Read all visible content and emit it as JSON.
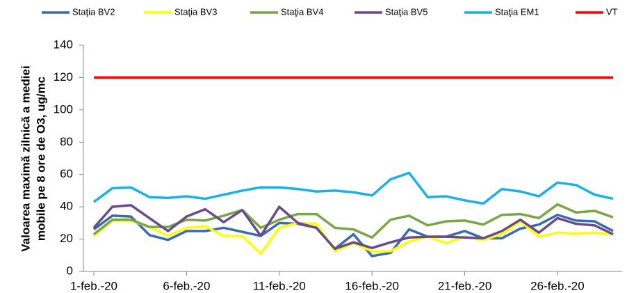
{
  "chart_data": {
    "type": "line",
    "ylabel": [
      "Valoarea maximă zilnică a mediei",
      "mobile pe 8 ore de O3, ug/mc"
    ],
    "categories": [
      "1-feb.-20",
      null,
      null,
      null,
      null,
      "6-feb.-20",
      null,
      null,
      null,
      null,
      "11-feb.-20",
      null,
      null,
      null,
      null,
      "16-feb.-20",
      null,
      null,
      null,
      null,
      "21-feb.-20",
      null,
      null,
      null,
      null,
      "26-feb.-20",
      null,
      null,
      null
    ],
    "ylim": [
      0,
      140
    ],
    "yticks": [
      0,
      20,
      40,
      60,
      80,
      100,
      120,
      140
    ],
    "grid": false,
    "legend": "top",
    "series": [
      {
        "name": "Staţia BV2",
        "color": "#3a6ab0",
        "values": [
          26,
          34.5,
          34,
          22.5,
          19.5,
          25,
          25,
          27,
          24.5,
          22,
          30,
          29.5,
          27,
          14,
          23,
          9.5,
          11.5,
          26,
          21.5,
          21.5,
          25,
          20.5,
          20.5,
          26.5,
          29,
          35,
          31.5,
          31,
          25
        ]
      },
      {
        "name": "Staţia BV3",
        "color": "#ffff00",
        "values": [
          22,
          31.5,
          31.5,
          27.5,
          22,
          27,
          28,
          22,
          22,
          11,
          27,
          30,
          29.5,
          12.5,
          17.5,
          12.5,
          12.5,
          18.5,
          21.5,
          17.5,
          21.5,
          19.5,
          23,
          31,
          21.5,
          24,
          23.5,
          24,
          23
        ]
      },
      {
        "name": "Staţia BV4",
        "color": "#78a646",
        "values": [
          23,
          32,
          32,
          27.5,
          27.5,
          32,
          31.5,
          34.5,
          38,
          27,
          32,
          35.5,
          35.5,
          27,
          26,
          21,
          32,
          34.5,
          28.5,
          31,
          31.5,
          29,
          35,
          35.5,
          33,
          41.5,
          36.5,
          37.5,
          33.5
        ]
      },
      {
        "name": "Staţia BV5",
        "color": "#6a4a8c",
        "values": [
          27,
          40,
          41,
          33,
          25,
          34,
          38.5,
          30.5,
          38,
          22,
          40,
          30,
          27,
          14,
          18,
          14.5,
          18,
          21,
          21.5,
          21.5,
          21,
          20.5,
          25,
          32,
          24,
          33,
          29.5,
          28.5,
          23
        ]
      },
      {
        "name": "Staţia EM1",
        "color": "#1ab0e8",
        "values": [
          43,
          51.5,
          52,
          46,
          45.5,
          46.5,
          45,
          47.5,
          50,
          52,
          52,
          51,
          49.5,
          50,
          49,
          47,
          57,
          61,
          46,
          46.5,
          44,
          42,
          51,
          49.5,
          46.5,
          55,
          53.5,
          47.5,
          45
        ]
      },
      {
        "name": "VT",
        "color": "#ff0000",
        "values": [
          120,
          120,
          120,
          120,
          120,
          120,
          120,
          120,
          120,
          120,
          120,
          120,
          120,
          120,
          120,
          120,
          120,
          120,
          120,
          120,
          120,
          120,
          120,
          120,
          120,
          120,
          120,
          120,
          120
        ]
      }
    ]
  }
}
